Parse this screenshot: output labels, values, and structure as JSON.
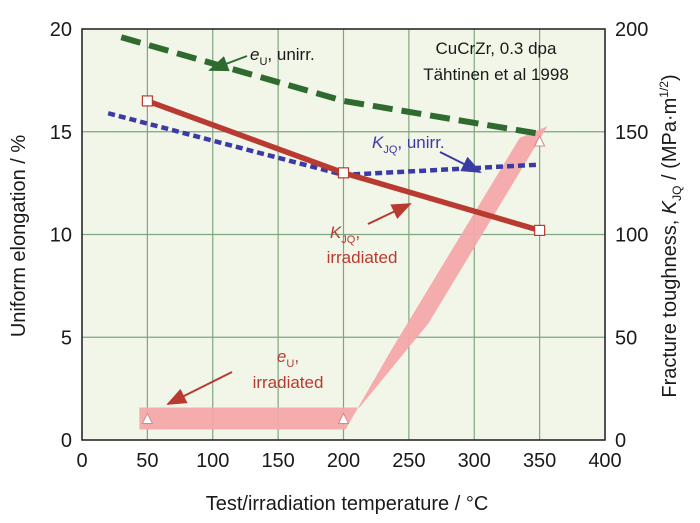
{
  "chart_data": {
    "type": "line",
    "annotation_source": [
      "CuCrZr, 0.3 dpa",
      "Tähtinen et al 1998"
    ],
    "xlabel": {
      "text": "Test/irradiation temperature / ",
      "unit": "°C"
    },
    "ylabel_left": "Uniform elongation / %",
    "ylabel_right": {
      "prefix": "Fracture toughness, ",
      "symbol": "K",
      "sub": "JQ",
      "unit_prefix": " / (MPa·m",
      "sup": "1/2",
      "unit_suffix": ")"
    },
    "xlim": [
      0,
      400
    ],
    "ylim_left": [
      0,
      20
    ],
    "ylim_right": [
      0,
      200
    ],
    "x_ticks": [
      "0",
      "50",
      "100",
      "150",
      "200",
      "250",
      "300",
      "350",
      "400"
    ],
    "y_left_ticks": [
      "0",
      "5",
      "10",
      "15",
      "20"
    ],
    "y_right_ticks": [
      "0",
      "50",
      "100",
      "150",
      "200"
    ],
    "grid": true,
    "series": [
      {
        "name": "e_U, unirr.",
        "axis": "left",
        "style": "dashed",
        "color": "#2f6b2f",
        "points": [
          [
            30,
            19.6
          ],
          [
            200,
            16.5
          ],
          [
            350,
            14.9
          ]
        ]
      },
      {
        "name": "K_JQ, unirr.",
        "axis": "right",
        "style": "dotted",
        "color": "#3b3ba6",
        "points": [
          [
            20,
            159
          ],
          [
            200,
            129
          ],
          [
            350,
            134
          ]
        ]
      },
      {
        "name": "K_JQ, irradiated",
        "axis": "right",
        "style": "solid",
        "color": "#b83a30",
        "markers": true,
        "points": [
          [
            50,
            165
          ],
          [
            200,
            130
          ],
          [
            350,
            102
          ]
        ]
      },
      {
        "name": "e_U, irradiated",
        "axis": "left",
        "style": "band",
        "color": "#f4a8aa",
        "markers": true,
        "points": [
          [
            50,
            1.0
          ],
          [
            200,
            1.0
          ],
          [
            350,
            14.5
          ]
        ]
      }
    ],
    "labels": {
      "eu_unirr": {
        "sym": "e",
        "sub": "U",
        "rest": ", unirr."
      },
      "kjq_unirr": {
        "sym": "K",
        "sub": "JQ",
        "rest": ", unirr."
      },
      "kjq_irr": {
        "sym": "K",
        "sub": "JQ",
        "rest": ",",
        "line2": "irradiated"
      },
      "eu_irr": {
        "sym": "e",
        "sub": "U",
        "rest": ",",
        "line2": "irradiated"
      }
    },
    "colors": {
      "plot_bg": "#f2f6e9",
      "grid": "#7fa57f",
      "frame": "#222222"
    }
  }
}
